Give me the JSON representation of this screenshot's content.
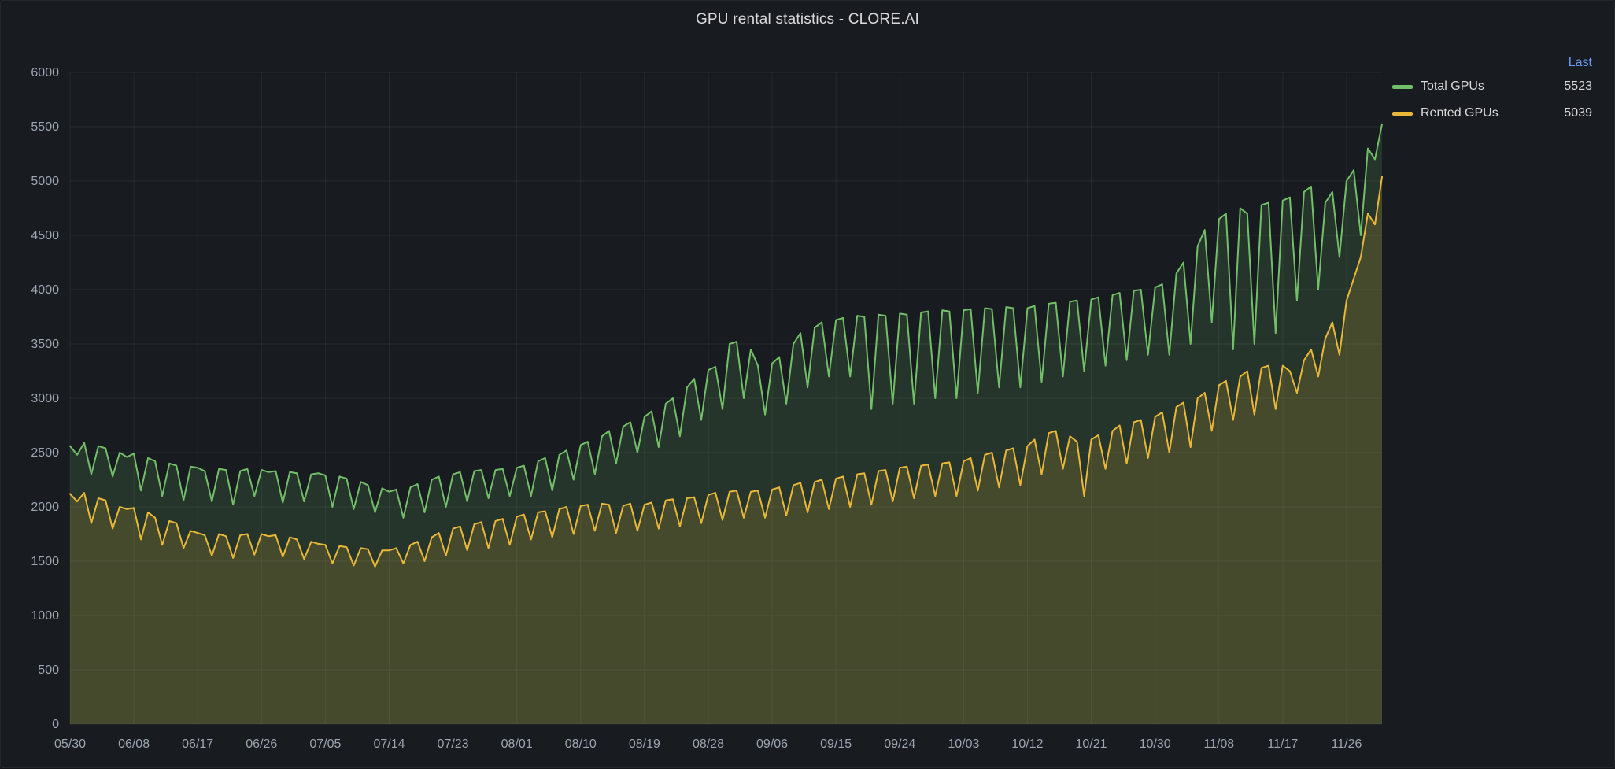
{
  "panel": {
    "title": "GPU rental statistics - CLORE.AI"
  },
  "legend": {
    "calc_header": "Last",
    "items": [
      {
        "label": "Total GPUs",
        "value": "5523",
        "color": "#73BF69"
      },
      {
        "label": "Rented GPUs",
        "value": "5039",
        "color": "#EAB839"
      }
    ]
  },
  "chart_data": {
    "type": "line",
    "title": "GPU rental statistics - CLORE.AI",
    "xlabel": "",
    "ylabel": "",
    "ylim": [
      0,
      6000
    ],
    "y_ticks": [
      0,
      500,
      1000,
      1500,
      2000,
      2500,
      3000,
      3500,
      4000,
      4500,
      5000,
      5500,
      6000
    ],
    "x_tick_labels": [
      "05/30",
      "06/08",
      "06/17",
      "06/26",
      "07/05",
      "07/14",
      "07/23",
      "08/01",
      "08/10",
      "08/19",
      "08/28",
      "09/06",
      "09/15",
      "09/24",
      "10/03",
      "10/12",
      "10/21",
      "10/30",
      "11/08",
      "11/17",
      "11/26"
    ],
    "x_tick_every_days": 9,
    "x_unit": "day_index",
    "grid": true,
    "legend_position": "right-top",
    "background": "#181b1f",
    "grid_color": "rgba(204,204,220,0.08)",
    "axis_text_color": "#9da5b0",
    "area_fill_opacity": 0.16,
    "series": [
      {
        "name": "Total GPUs",
        "color": "#73BF69",
        "last": 5523,
        "values": [
          2560,
          2480,
          2590,
          2300,
          2560,
          2540,
          2280,
          2500,
          2460,
          2490,
          2150,
          2450,
          2420,
          2100,
          2400,
          2380,
          2060,
          2370,
          2360,
          2330,
          2050,
          2350,
          2340,
          2020,
          2330,
          2350,
          2100,
          2340,
          2320,
          2330,
          2040,
          2320,
          2310,
          2050,
          2300,
          2310,
          2290,
          2000,
          2280,
          2260,
          1980,
          2230,
          2200,
          1950,
          2170,
          2140,
          2160,
          1900,
          2180,
          2210,
          1950,
          2250,
          2280,
          2000,
          2300,
          2320,
          2050,
          2330,
          2340,
          2080,
          2340,
          2350,
          2100,
          2360,
          2380,
          2100,
          2420,
          2450,
          2150,
          2480,
          2520,
          2250,
          2570,
          2600,
          2300,
          2650,
          2700,
          2400,
          2740,
          2780,
          2500,
          2830,
          2880,
          2550,
          2950,
          3000,
          2650,
          3100,
          3180,
          2800,
          3260,
          3290,
          2900,
          3500,
          3520,
          3000,
          3450,
          3300,
          2850,
          3320,
          3380,
          2950,
          3500,
          3600,
          3100,
          3650,
          3700,
          3200,
          3720,
          3740,
          3200,
          3760,
          3750,
          2900,
          3770,
          3760,
          2950,
          3780,
          3770,
          2950,
          3790,
          3800,
          3000,
          3810,
          3800,
          3000,
          3810,
          3820,
          3050,
          3830,
          3820,
          3100,
          3840,
          3830,
          3100,
          3830,
          3850,
          3150,
          3870,
          3880,
          3200,
          3890,
          3900,
          3250,
          3910,
          3930,
          3300,
          3950,
          3970,
          3350,
          3990,
          4000,
          3400,
          4020,
          4050,
          3400,
          4150,
          4250,
          3500,
          4400,
          4550,
          3700,
          4650,
          4700,
          3450,
          4750,
          4700,
          3500,
          4780,
          4800,
          3600,
          4820,
          4850,
          3900,
          4900,
          4950,
          4000,
          4800,
          4900,
          4300,
          5000,
          5100,
          4500,
          5300,
          5200,
          5523
        ]
      },
      {
        "name": "Rented GPUs",
        "color": "#EAB839",
        "last": 5039,
        "values": [
          2120,
          2050,
          2130,
          1850,
          2080,
          2060,
          1800,
          2000,
          1980,
          1990,
          1700,
          1950,
          1900,
          1650,
          1870,
          1850,
          1620,
          1780,
          1760,
          1740,
          1550,
          1750,
          1730,
          1530,
          1740,
          1750,
          1560,
          1750,
          1730,
          1740,
          1540,
          1720,
          1700,
          1520,
          1680,
          1660,
          1650,
          1480,
          1640,
          1630,
          1460,
          1620,
          1610,
          1450,
          1600,
          1600,
          1620,
          1480,
          1650,
          1680,
          1500,
          1720,
          1760,
          1550,
          1800,
          1820,
          1600,
          1840,
          1860,
          1620,
          1870,
          1890,
          1650,
          1910,
          1930,
          1700,
          1950,
          1960,
          1720,
          1980,
          2000,
          1750,
          2010,
          2020,
          1780,
          2030,
          2020,
          1760,
          2010,
          2030,
          1780,
          2020,
          2040,
          1800,
          2060,
          2070,
          1820,
          2080,
          2090,
          1850,
          2110,
          2130,
          1880,
          2140,
          2150,
          1900,
          2140,
          2150,
          1900,
          2160,
          2180,
          1920,
          2200,
          2220,
          1950,
          2230,
          2250,
          1980,
          2260,
          2280,
          2000,
          2300,
          2310,
          2020,
          2330,
          2340,
          2050,
          2360,
          2370,
          2080,
          2380,
          2390,
          2100,
          2400,
          2410,
          2100,
          2420,
          2450,
          2150,
          2480,
          2500,
          2180,
          2520,
          2540,
          2200,
          2560,
          2620,
          2300,
          2680,
          2700,
          2350,
          2650,
          2600,
          2100,
          2620,
          2660,
          2350,
          2700,
          2750,
          2400,
          2780,
          2800,
          2450,
          2830,
          2870,
          2500,
          2920,
          2960,
          2550,
          3000,
          3050,
          2700,
          3120,
          3160,
          2800,
          3200,
          3250,
          2850,
          3280,
          3300,
          2900,
          3300,
          3250,
          3050,
          3350,
          3450,
          3200,
          3550,
          3700,
          3400,
          3900,
          4100,
          4300,
          4700,
          4600,
          5039
        ]
      }
    ]
  }
}
